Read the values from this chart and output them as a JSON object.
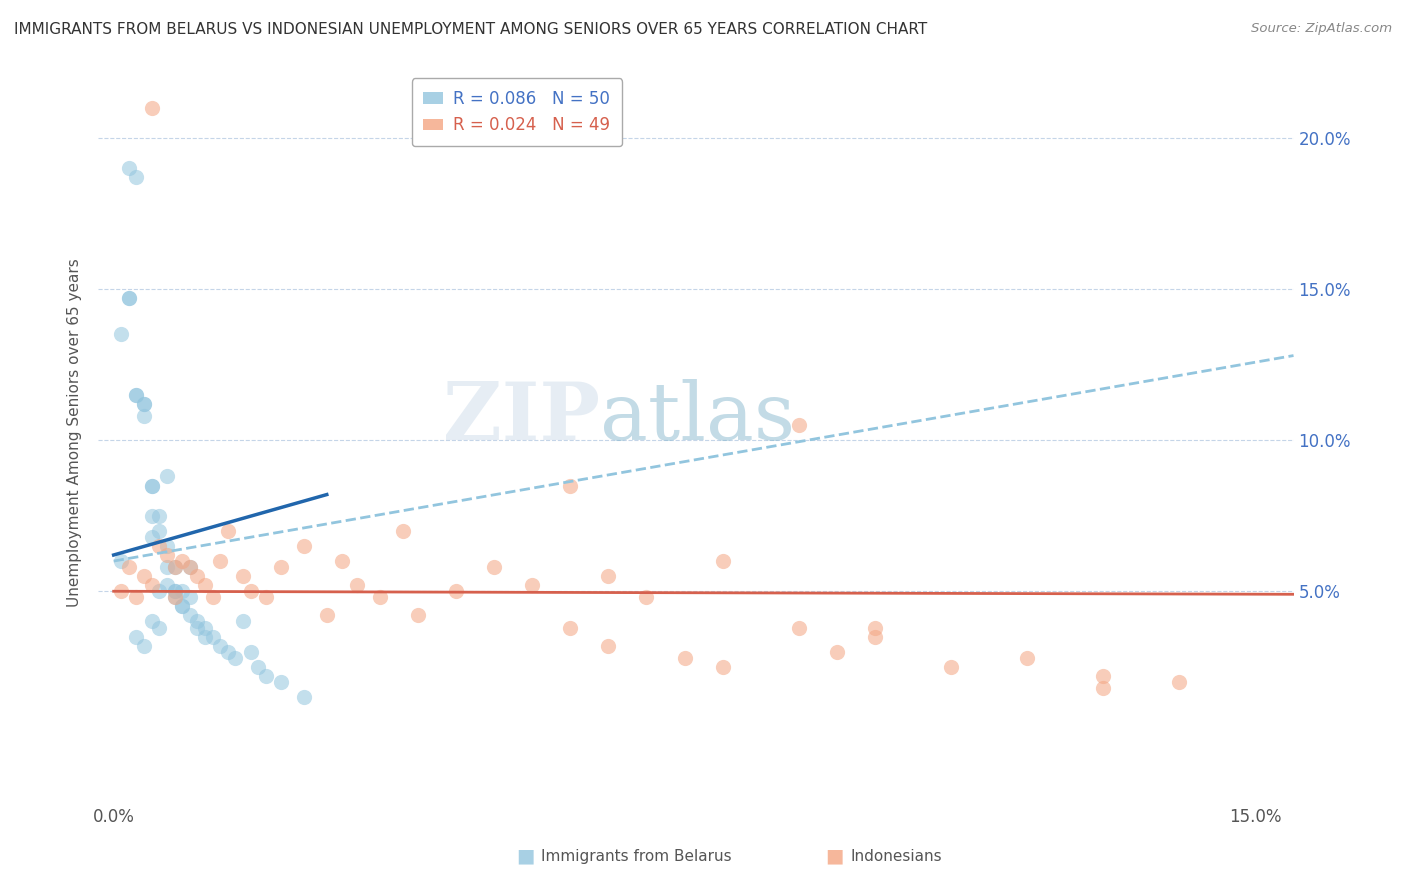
{
  "title": "IMMIGRANTS FROM BELARUS VS INDONESIAN UNEMPLOYMENT AMONG SENIORS OVER 65 YEARS CORRELATION CHART",
  "source": "Source: ZipAtlas.com",
  "ylabel": "Unemployment Among Seniors over 65 years",
  "y_ticks_labels": [
    "5.0%",
    "10.0%",
    "15.0%",
    "20.0%"
  ],
  "y_tick_vals": [
    0.05,
    0.1,
    0.15,
    0.2
  ],
  "x_lim": [
    -0.002,
    0.155
  ],
  "y_lim": [
    -0.02,
    0.225
  ],
  "legend_1_label": "R = 0.086   N = 50",
  "legend_2_label": "R = 0.024   N = 49",
  "legend_1_color": "#92c5de",
  "legend_2_color": "#f4a582",
  "legend_1_line_color": "#2166ac",
  "legend_2_line_color": "#d6604d",
  "watermark_text": "ZIPatlas",
  "bottom_legend_blue": "Immigrants from Belarus",
  "bottom_legend_pink": "Indonesians",
  "grid_color": "#cccccc",
  "scatter_alpha": 0.55,
  "scatter_size": 120,
  "blue_scatter_x": [
    0.001,
    0.002,
    0.003,
    0.003,
    0.004,
    0.004,
    0.005,
    0.005,
    0.005,
    0.006,
    0.006,
    0.007,
    0.007,
    0.007,
    0.008,
    0.008,
    0.008,
    0.009,
    0.009,
    0.01,
    0.01,
    0.011,
    0.012,
    0.013,
    0.014,
    0.015,
    0.016,
    0.017,
    0.018,
    0.019,
    0.02,
    0.022,
    0.025,
    0.001,
    0.002,
    0.002,
    0.003,
    0.004,
    0.005,
    0.006,
    0.003,
    0.004,
    0.005,
    0.006,
    0.007,
    0.008,
    0.009,
    0.01,
    0.011,
    0.012
  ],
  "blue_scatter_y": [
    0.135,
    0.19,
    0.187,
    0.115,
    0.112,
    0.112,
    0.085,
    0.075,
    0.068,
    0.075,
    0.07,
    0.088,
    0.065,
    0.058,
    0.058,
    0.05,
    0.05,
    0.05,
    0.045,
    0.058,
    0.048,
    0.04,
    0.038,
    0.035,
    0.032,
    0.03,
    0.028,
    0.04,
    0.03,
    0.025,
    0.022,
    0.02,
    0.015,
    0.06,
    0.147,
    0.147,
    0.115,
    0.108,
    0.085,
    0.05,
    0.035,
    0.032,
    0.04,
    0.038,
    0.052,
    0.048,
    0.045,
    0.042,
    0.038,
    0.035
  ],
  "pink_scatter_x": [
    0.001,
    0.002,
    0.003,
    0.004,
    0.005,
    0.006,
    0.007,
    0.008,
    0.009,
    0.01,
    0.011,
    0.012,
    0.013,
    0.014,
    0.015,
    0.017,
    0.018,
    0.02,
    0.022,
    0.025,
    0.028,
    0.03,
    0.032,
    0.035,
    0.038,
    0.04,
    0.045,
    0.05,
    0.055,
    0.06,
    0.065,
    0.07,
    0.075,
    0.08,
    0.09,
    0.1,
    0.11,
    0.12,
    0.13,
    0.14,
    0.005,
    0.008,
    0.06,
    0.065,
    0.08,
    0.09,
    0.095,
    0.1,
    0.13
  ],
  "pink_scatter_y": [
    0.05,
    0.058,
    0.048,
    0.055,
    0.052,
    0.065,
    0.062,
    0.058,
    0.06,
    0.058,
    0.055,
    0.052,
    0.048,
    0.06,
    0.07,
    0.055,
    0.05,
    0.048,
    0.058,
    0.065,
    0.042,
    0.06,
    0.052,
    0.048,
    0.07,
    0.042,
    0.05,
    0.058,
    0.052,
    0.038,
    0.032,
    0.048,
    0.028,
    0.025,
    0.038,
    0.035,
    0.025,
    0.028,
    0.022,
    0.02,
    0.21,
    0.048,
    0.085,
    0.055,
    0.06,
    0.105,
    0.03,
    0.038,
    0.018
  ],
  "blue_solid_line_x": [
    0.0,
    0.028
  ],
  "blue_solid_line_y": [
    0.062,
    0.082
  ],
  "blue_dashed_line_x": [
    0.0,
    0.155
  ],
  "blue_dashed_line_y": [
    0.06,
    0.128
  ],
  "pink_line_x": [
    0.0,
    0.155
  ],
  "pink_line_y": [
    0.05,
    0.049
  ]
}
